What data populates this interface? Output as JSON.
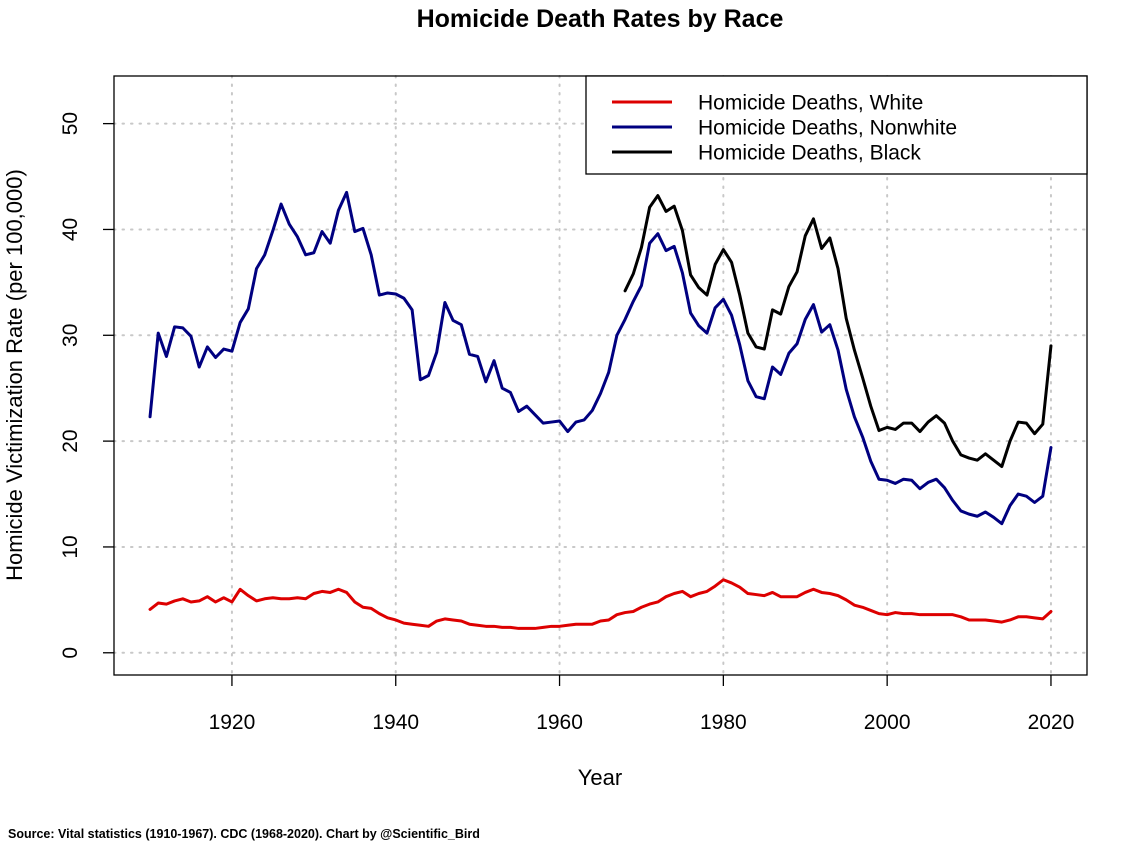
{
  "chart_data": {
    "type": "line",
    "title": "Homicide Death Rates by Race",
    "xlabel": "Year",
    "ylabel": "Homicide Victimization Rate (per 100,000)",
    "source": "Source: Vital statistics (1910-1967). CDC (1968-2020). Chart by @Scientific_Bird",
    "xlim": [
      1905.6,
      2024.4
    ],
    "ylim": [
      -2.1,
      54.5
    ],
    "xticks": [
      1920,
      1940,
      1960,
      1980,
      2000,
      2020
    ],
    "yticks": [
      0,
      10,
      20,
      30,
      40,
      50
    ],
    "grid": true,
    "legend_position": "top-right",
    "series": [
      {
        "name": "Homicide Deaths, White",
        "color": "#dd0000",
        "points": [
          [
            1910,
            4.1
          ],
          [
            1911,
            4.7
          ],
          [
            1912,
            4.6
          ],
          [
            1913,
            4.9
          ],
          [
            1914,
            5.1
          ],
          [
            1915,
            4.8
          ],
          [
            1916,
            4.9
          ],
          [
            1917,
            5.3
          ],
          [
            1918,
            4.8
          ],
          [
            1919,
            5.2
          ],
          [
            1920,
            4.8
          ],
          [
            1921,
            6.0
          ],
          [
            1922,
            5.4
          ],
          [
            1923,
            4.9
          ],
          [
            1924,
            5.1
          ],
          [
            1925,
            5.2
          ],
          [
            1926,
            5.1
          ],
          [
            1927,
            5.1
          ],
          [
            1928,
            5.2
          ],
          [
            1929,
            5.1
          ],
          [
            1930,
            5.6
          ],
          [
            1931,
            5.8
          ],
          [
            1932,
            5.7
          ],
          [
            1933,
            6.0
          ],
          [
            1934,
            5.7
          ],
          [
            1935,
            4.8
          ],
          [
            1936,
            4.3
          ],
          [
            1937,
            4.2
          ],
          [
            1938,
            3.7
          ],
          [
            1939,
            3.3
          ],
          [
            1940,
            3.1
          ],
          [
            1941,
            2.8
          ],
          [
            1942,
            2.7
          ],
          [
            1943,
            2.6
          ],
          [
            1944,
            2.5
          ],
          [
            1945,
            3.0
          ],
          [
            1946,
            3.2
          ],
          [
            1947,
            3.1
          ],
          [
            1948,
            3.0
          ],
          [
            1949,
            2.7
          ],
          [
            1950,
            2.6
          ],
          [
            1951,
            2.5
          ],
          [
            1952,
            2.5
          ],
          [
            1953,
            2.4
          ],
          [
            1954,
            2.4
          ],
          [
            1955,
            2.3
          ],
          [
            1956,
            2.3
          ],
          [
            1957,
            2.3
          ],
          [
            1958,
            2.4
          ],
          [
            1959,
            2.5
          ],
          [
            1960,
            2.5
          ],
          [
            1961,
            2.6
          ],
          [
            1962,
            2.7
          ],
          [
            1963,
            2.7
          ],
          [
            1964,
            2.7
          ],
          [
            1965,
            3.0
          ],
          [
            1966,
            3.1
          ],
          [
            1967,
            3.6
          ],
          [
            1968,
            3.8
          ],
          [
            1969,
            3.9
          ],
          [
            1970,
            4.3
          ],
          [
            1971,
            4.6
          ],
          [
            1972,
            4.8
          ],
          [
            1973,
            5.3
          ],
          [
            1974,
            5.6
          ],
          [
            1975,
            5.8
          ],
          [
            1976,
            5.3
          ],
          [
            1977,
            5.6
          ],
          [
            1978,
            5.8
          ],
          [
            1979,
            6.3
          ],
          [
            1980,
            6.9
          ],
          [
            1981,
            6.6
          ],
          [
            1982,
            6.2
          ],
          [
            1983,
            5.6
          ],
          [
            1984,
            5.5
          ],
          [
            1985,
            5.4
          ],
          [
            1986,
            5.7
          ],
          [
            1987,
            5.3
          ],
          [
            1988,
            5.3
          ],
          [
            1989,
            5.3
          ],
          [
            1990,
            5.7
          ],
          [
            1991,
            6.0
          ],
          [
            1992,
            5.7
          ],
          [
            1993,
            5.6
          ],
          [
            1994,
            5.4
          ],
          [
            1995,
            5.0
          ],
          [
            1996,
            4.5
          ],
          [
            1997,
            4.3
          ],
          [
            1998,
            4.0
          ],
          [
            1999,
            3.7
          ],
          [
            2000,
            3.6
          ],
          [
            2001,
            3.8
          ],
          [
            2002,
            3.7
          ],
          [
            2003,
            3.7
          ],
          [
            2004,
            3.6
          ],
          [
            2005,
            3.6
          ],
          [
            2006,
            3.6
          ],
          [
            2007,
            3.6
          ],
          [
            2008,
            3.6
          ],
          [
            2009,
            3.4
          ],
          [
            2010,
            3.1
          ],
          [
            2011,
            3.1
          ],
          [
            2012,
            3.1
          ],
          [
            2013,
            3.0
          ],
          [
            2014,
            2.9
          ],
          [
            2015,
            3.1
          ],
          [
            2016,
            3.4
          ],
          [
            2017,
            3.4
          ],
          [
            2018,
            3.3
          ],
          [
            2019,
            3.2
          ],
          [
            2020,
            3.9
          ]
        ]
      },
      {
        "name": "Homicide Deaths, Nonwhite",
        "color": "#000080",
        "points": [
          [
            1910,
            22.3
          ],
          [
            1911,
            30.2
          ],
          [
            1912,
            28.0
          ],
          [
            1913,
            30.8
          ],
          [
            1914,
            30.7
          ],
          [
            1915,
            29.9
          ],
          [
            1916,
            27.0
          ],
          [
            1917,
            28.9
          ],
          [
            1918,
            27.9
          ],
          [
            1919,
            28.7
          ],
          [
            1920,
            28.5
          ],
          [
            1921,
            31.2
          ],
          [
            1922,
            32.5
          ],
          [
            1923,
            36.3
          ],
          [
            1924,
            37.6
          ],
          [
            1925,
            39.9
          ],
          [
            1926,
            42.4
          ],
          [
            1927,
            40.5
          ],
          [
            1928,
            39.3
          ],
          [
            1929,
            37.6
          ],
          [
            1930,
            37.8
          ],
          [
            1931,
            39.8
          ],
          [
            1932,
            38.7
          ],
          [
            1933,
            41.8
          ],
          [
            1934,
            43.5
          ],
          [
            1935,
            39.8
          ],
          [
            1936,
            40.1
          ],
          [
            1937,
            37.6
          ],
          [
            1938,
            33.8
          ],
          [
            1939,
            34.0
          ],
          [
            1940,
            33.9
          ],
          [
            1941,
            33.5
          ],
          [
            1942,
            32.4
          ],
          [
            1943,
            25.8
          ],
          [
            1944,
            26.2
          ],
          [
            1945,
            28.4
          ],
          [
            1946,
            33.1
          ],
          [
            1947,
            31.4
          ],
          [
            1948,
            31.0
          ],
          [
            1949,
            28.2
          ],
          [
            1950,
            28.0
          ],
          [
            1951,
            25.6
          ],
          [
            1952,
            27.6
          ],
          [
            1953,
            25.0
          ],
          [
            1954,
            24.6
          ],
          [
            1955,
            22.8
          ],
          [
            1956,
            23.3
          ],
          [
            1957,
            22.5
          ],
          [
            1958,
            21.7
          ],
          [
            1959,
            21.8
          ],
          [
            1960,
            21.9
          ],
          [
            1961,
            20.9
          ],
          [
            1962,
            21.8
          ],
          [
            1963,
            22.0
          ],
          [
            1964,
            22.9
          ],
          [
            1965,
            24.5
          ],
          [
            1966,
            26.5
          ],
          [
            1967,
            30.0
          ],
          [
            1968,
            31.5
          ],
          [
            1969,
            33.2
          ],
          [
            1970,
            34.7
          ],
          [
            1971,
            38.7
          ],
          [
            1972,
            39.6
          ],
          [
            1973,
            38.0
          ],
          [
            1974,
            38.4
          ],
          [
            1975,
            35.9
          ],
          [
            1976,
            32.1
          ],
          [
            1977,
            30.9
          ],
          [
            1978,
            30.2
          ],
          [
            1979,
            32.6
          ],
          [
            1980,
            33.4
          ],
          [
            1981,
            31.9
          ],
          [
            1982,
            29.1
          ],
          [
            1983,
            25.7
          ],
          [
            1984,
            24.2
          ],
          [
            1985,
            24.0
          ],
          [
            1986,
            27.0
          ],
          [
            1987,
            26.3
          ],
          [
            1988,
            28.3
          ],
          [
            1989,
            29.2
          ],
          [
            1990,
            31.5
          ],
          [
            1991,
            32.9
          ],
          [
            1992,
            30.3
          ],
          [
            1993,
            31.0
          ],
          [
            1994,
            28.6
          ],
          [
            1995,
            24.9
          ],
          [
            1996,
            22.3
          ],
          [
            1997,
            20.4
          ],
          [
            1998,
            18.1
          ],
          [
            1999,
            16.4
          ],
          [
            2000,
            16.3
          ],
          [
            2001,
            16.0
          ],
          [
            2002,
            16.4
          ],
          [
            2003,
            16.3
          ],
          [
            2004,
            15.5
          ],
          [
            2005,
            16.1
          ],
          [
            2006,
            16.4
          ],
          [
            2007,
            15.6
          ],
          [
            2008,
            14.4
          ],
          [
            2009,
            13.4
          ],
          [
            2010,
            13.1
          ],
          [
            2011,
            12.9
          ],
          [
            2012,
            13.3
          ],
          [
            2013,
            12.8
          ],
          [
            2014,
            12.2
          ],
          [
            2015,
            13.9
          ],
          [
            2016,
            15.0
          ],
          [
            2017,
            14.8
          ],
          [
            2018,
            14.2
          ],
          [
            2019,
            14.8
          ],
          [
            2020,
            19.4
          ]
        ]
      },
      {
        "name": "Homicide Deaths, Black",
        "color": "#000000",
        "points": [
          [
            1968,
            34.2
          ],
          [
            1969,
            35.8
          ],
          [
            1970,
            38.3
          ],
          [
            1971,
            42.1
          ],
          [
            1972,
            43.2
          ],
          [
            1973,
            41.7
          ],
          [
            1974,
            42.2
          ],
          [
            1975,
            39.9
          ],
          [
            1976,
            35.7
          ],
          [
            1977,
            34.5
          ],
          [
            1978,
            33.8
          ],
          [
            1979,
            36.7
          ],
          [
            1980,
            38.1
          ],
          [
            1981,
            36.9
          ],
          [
            1982,
            33.8
          ],
          [
            1983,
            30.2
          ],
          [
            1984,
            28.9
          ],
          [
            1985,
            28.7
          ],
          [
            1986,
            32.4
          ],
          [
            1987,
            32.0
          ],
          [
            1988,
            34.6
          ],
          [
            1989,
            36.0
          ],
          [
            1990,
            39.4
          ],
          [
            1991,
            41.0
          ],
          [
            1992,
            38.2
          ],
          [
            1993,
            39.2
          ],
          [
            1994,
            36.3
          ],
          [
            1995,
            31.6
          ],
          [
            1996,
            28.6
          ],
          [
            1997,
            26.0
          ],
          [
            1998,
            23.3
          ],
          [
            1999,
            21.0
          ],
          [
            2000,
            21.3
          ],
          [
            2001,
            21.1
          ],
          [
            2002,
            21.7
          ],
          [
            2003,
            21.7
          ],
          [
            2004,
            20.9
          ],
          [
            2005,
            21.8
          ],
          [
            2006,
            22.4
          ],
          [
            2007,
            21.7
          ],
          [
            2008,
            20.0
          ],
          [
            2009,
            18.7
          ],
          [
            2010,
            18.4
          ],
          [
            2011,
            18.2
          ],
          [
            2012,
            18.8
          ],
          [
            2013,
            18.2
          ],
          [
            2014,
            17.6
          ],
          [
            2015,
            20.0
          ],
          [
            2016,
            21.8
          ],
          [
            2017,
            21.7
          ],
          [
            2018,
            20.7
          ],
          [
            2019,
            21.6
          ],
          [
            2020,
            29.0
          ]
        ]
      }
    ]
  }
}
